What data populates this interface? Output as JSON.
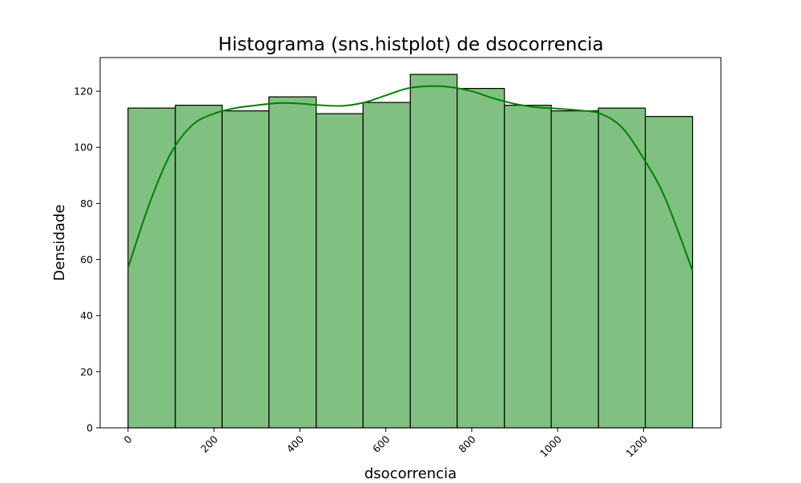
{
  "chart_data": {
    "type": "bar",
    "title": "Histograma (sns.histplot) de dsocorrencia",
    "xlabel": "dsocorrencia",
    "ylabel": "Densidade",
    "xlim": [
      -65,
      1380
    ],
    "ylim": [
      0,
      132
    ],
    "x_ticks": [
      0,
      200,
      400,
      600,
      800,
      1000,
      1200
    ],
    "x_tick_labels": [
      "0",
      "200",
      "400",
      "600",
      "800",
      "1000",
      "1200"
    ],
    "x_tick_rotation": 45,
    "y_ticks": [
      0,
      20,
      40,
      60,
      80,
      100,
      120
    ],
    "y_tick_labels": [
      "0",
      "20",
      "40",
      "60",
      "80",
      "100",
      "120"
    ],
    "grid": false,
    "legend": false,
    "bins": [
      {
        "x0": 0,
        "x1": 110,
        "value": 114
      },
      {
        "x0": 110,
        "x1": 219,
        "value": 115
      },
      {
        "x0": 219,
        "x1": 328,
        "value": 113
      },
      {
        "x0": 328,
        "x1": 438,
        "value": 118
      },
      {
        "x0": 438,
        "x1": 547,
        "value": 112
      },
      {
        "x0": 547,
        "x1": 657,
        "value": 116
      },
      {
        "x0": 657,
        "x1": 766,
        "value": 126
      },
      {
        "x0": 766,
        "x1": 876,
        "value": 121
      },
      {
        "x0": 876,
        "x1": 985,
        "value": 115
      },
      {
        "x0": 985,
        "x1": 1095,
        "value": 113
      },
      {
        "x0": 1095,
        "x1": 1204,
        "value": 114
      },
      {
        "x0": 1204,
        "x1": 1314,
        "value": 111
      }
    ],
    "kde": {
      "x": [
        0,
        50,
        100,
        150,
        200,
        250,
        300,
        350,
        400,
        450,
        500,
        550,
        600,
        650,
        700,
        750,
        800,
        850,
        900,
        950,
        1000,
        1050,
        1100,
        1150,
        1200,
        1250,
        1314
      ],
      "y": [
        57,
        80,
        98,
        108,
        112,
        114,
        115,
        115.8,
        115.6,
        115,
        114.8,
        116,
        118.5,
        121,
        121.8,
        121.5,
        120,
        117.5,
        115.5,
        114.3,
        113.8,
        113.2,
        112,
        107,
        96,
        82,
        56
      ]
    },
    "colors": {
      "bar_fill": "#80c080",
      "bar_edge": "#000000",
      "kde_line": "#008000"
    }
  }
}
